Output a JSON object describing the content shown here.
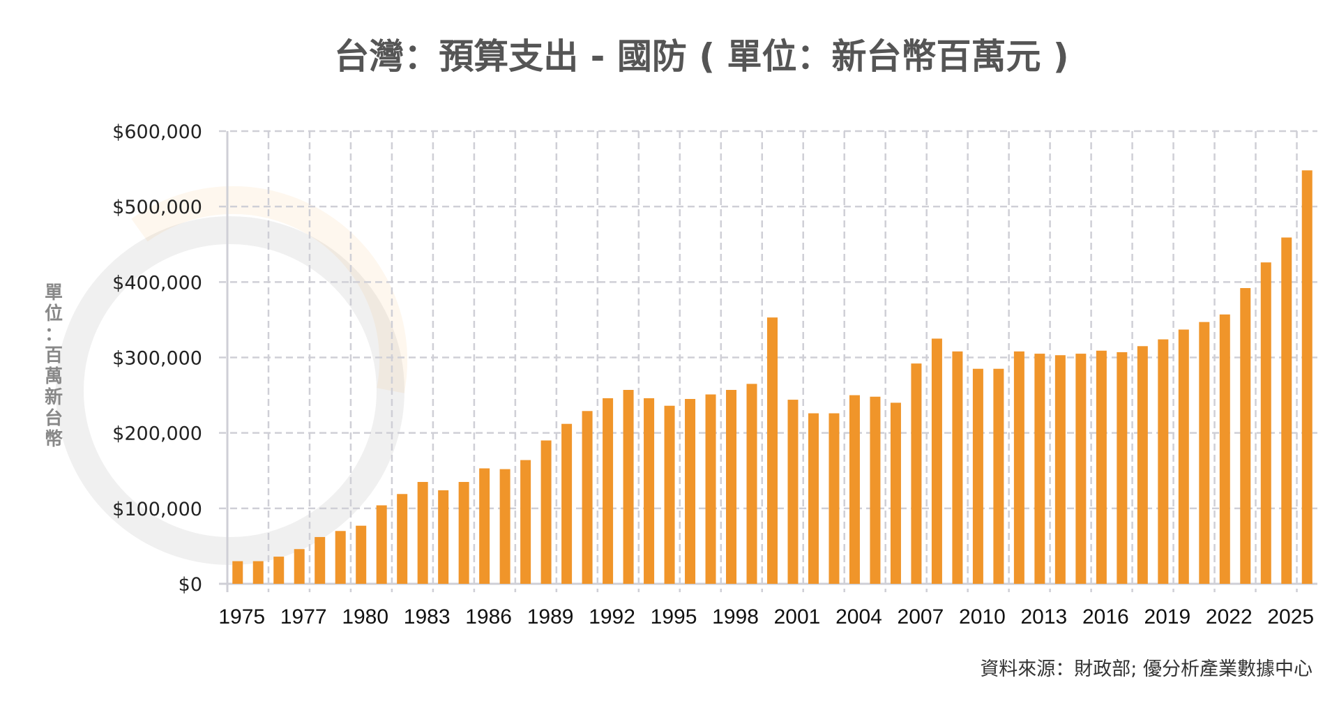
{
  "chart_data": {
    "type": "bar",
    "title": "台灣：預算支出 - 國防 ( 單位：新台幣百萬元 )",
    "ylabel": "單位：百萬新台幣",
    "xlabel": "",
    "source": "資料來源：財政部; 優分析產業數據中心",
    "ylim": [
      0,
      600000
    ],
    "yticks": [
      "$0",
      "$100,000",
      "$200,000",
      "$300,000",
      "$400,000",
      "$500,000",
      "$600,000"
    ],
    "xtick_labels": [
      "1975",
      "1977",
      "1980",
      "1983",
      "1986",
      "1989",
      "1992",
      "1995",
      "1998",
      "2001",
      "2004",
      "2007",
      "2010",
      "2013",
      "2016",
      "2019",
      "2022",
      "2025"
    ],
    "xtick_every": 3,
    "grid": true,
    "bar_color": "#F0952A",
    "values": [
      30000,
      30000,
      36000,
      46000,
      62000,
      70000,
      77000,
      104000,
      119000,
      135000,
      124000,
      135000,
      153000,
      152000,
      164000,
      190000,
      212000,
      229000,
      246000,
      257000,
      246000,
      236000,
      245000,
      251000,
      257000,
      265000,
      353000,
      244000,
      226000,
      226000,
      250000,
      248000,
      240000,
      292000,
      325000,
      308000,
      285000,
      285000,
      308000,
      305000,
      303000,
      305000,
      309000,
      307000,
      315000,
      324000,
      337000,
      347000,
      357000,
      392000,
      426000,
      459000,
      548000
    ]
  },
  "watermark": "優分析"
}
